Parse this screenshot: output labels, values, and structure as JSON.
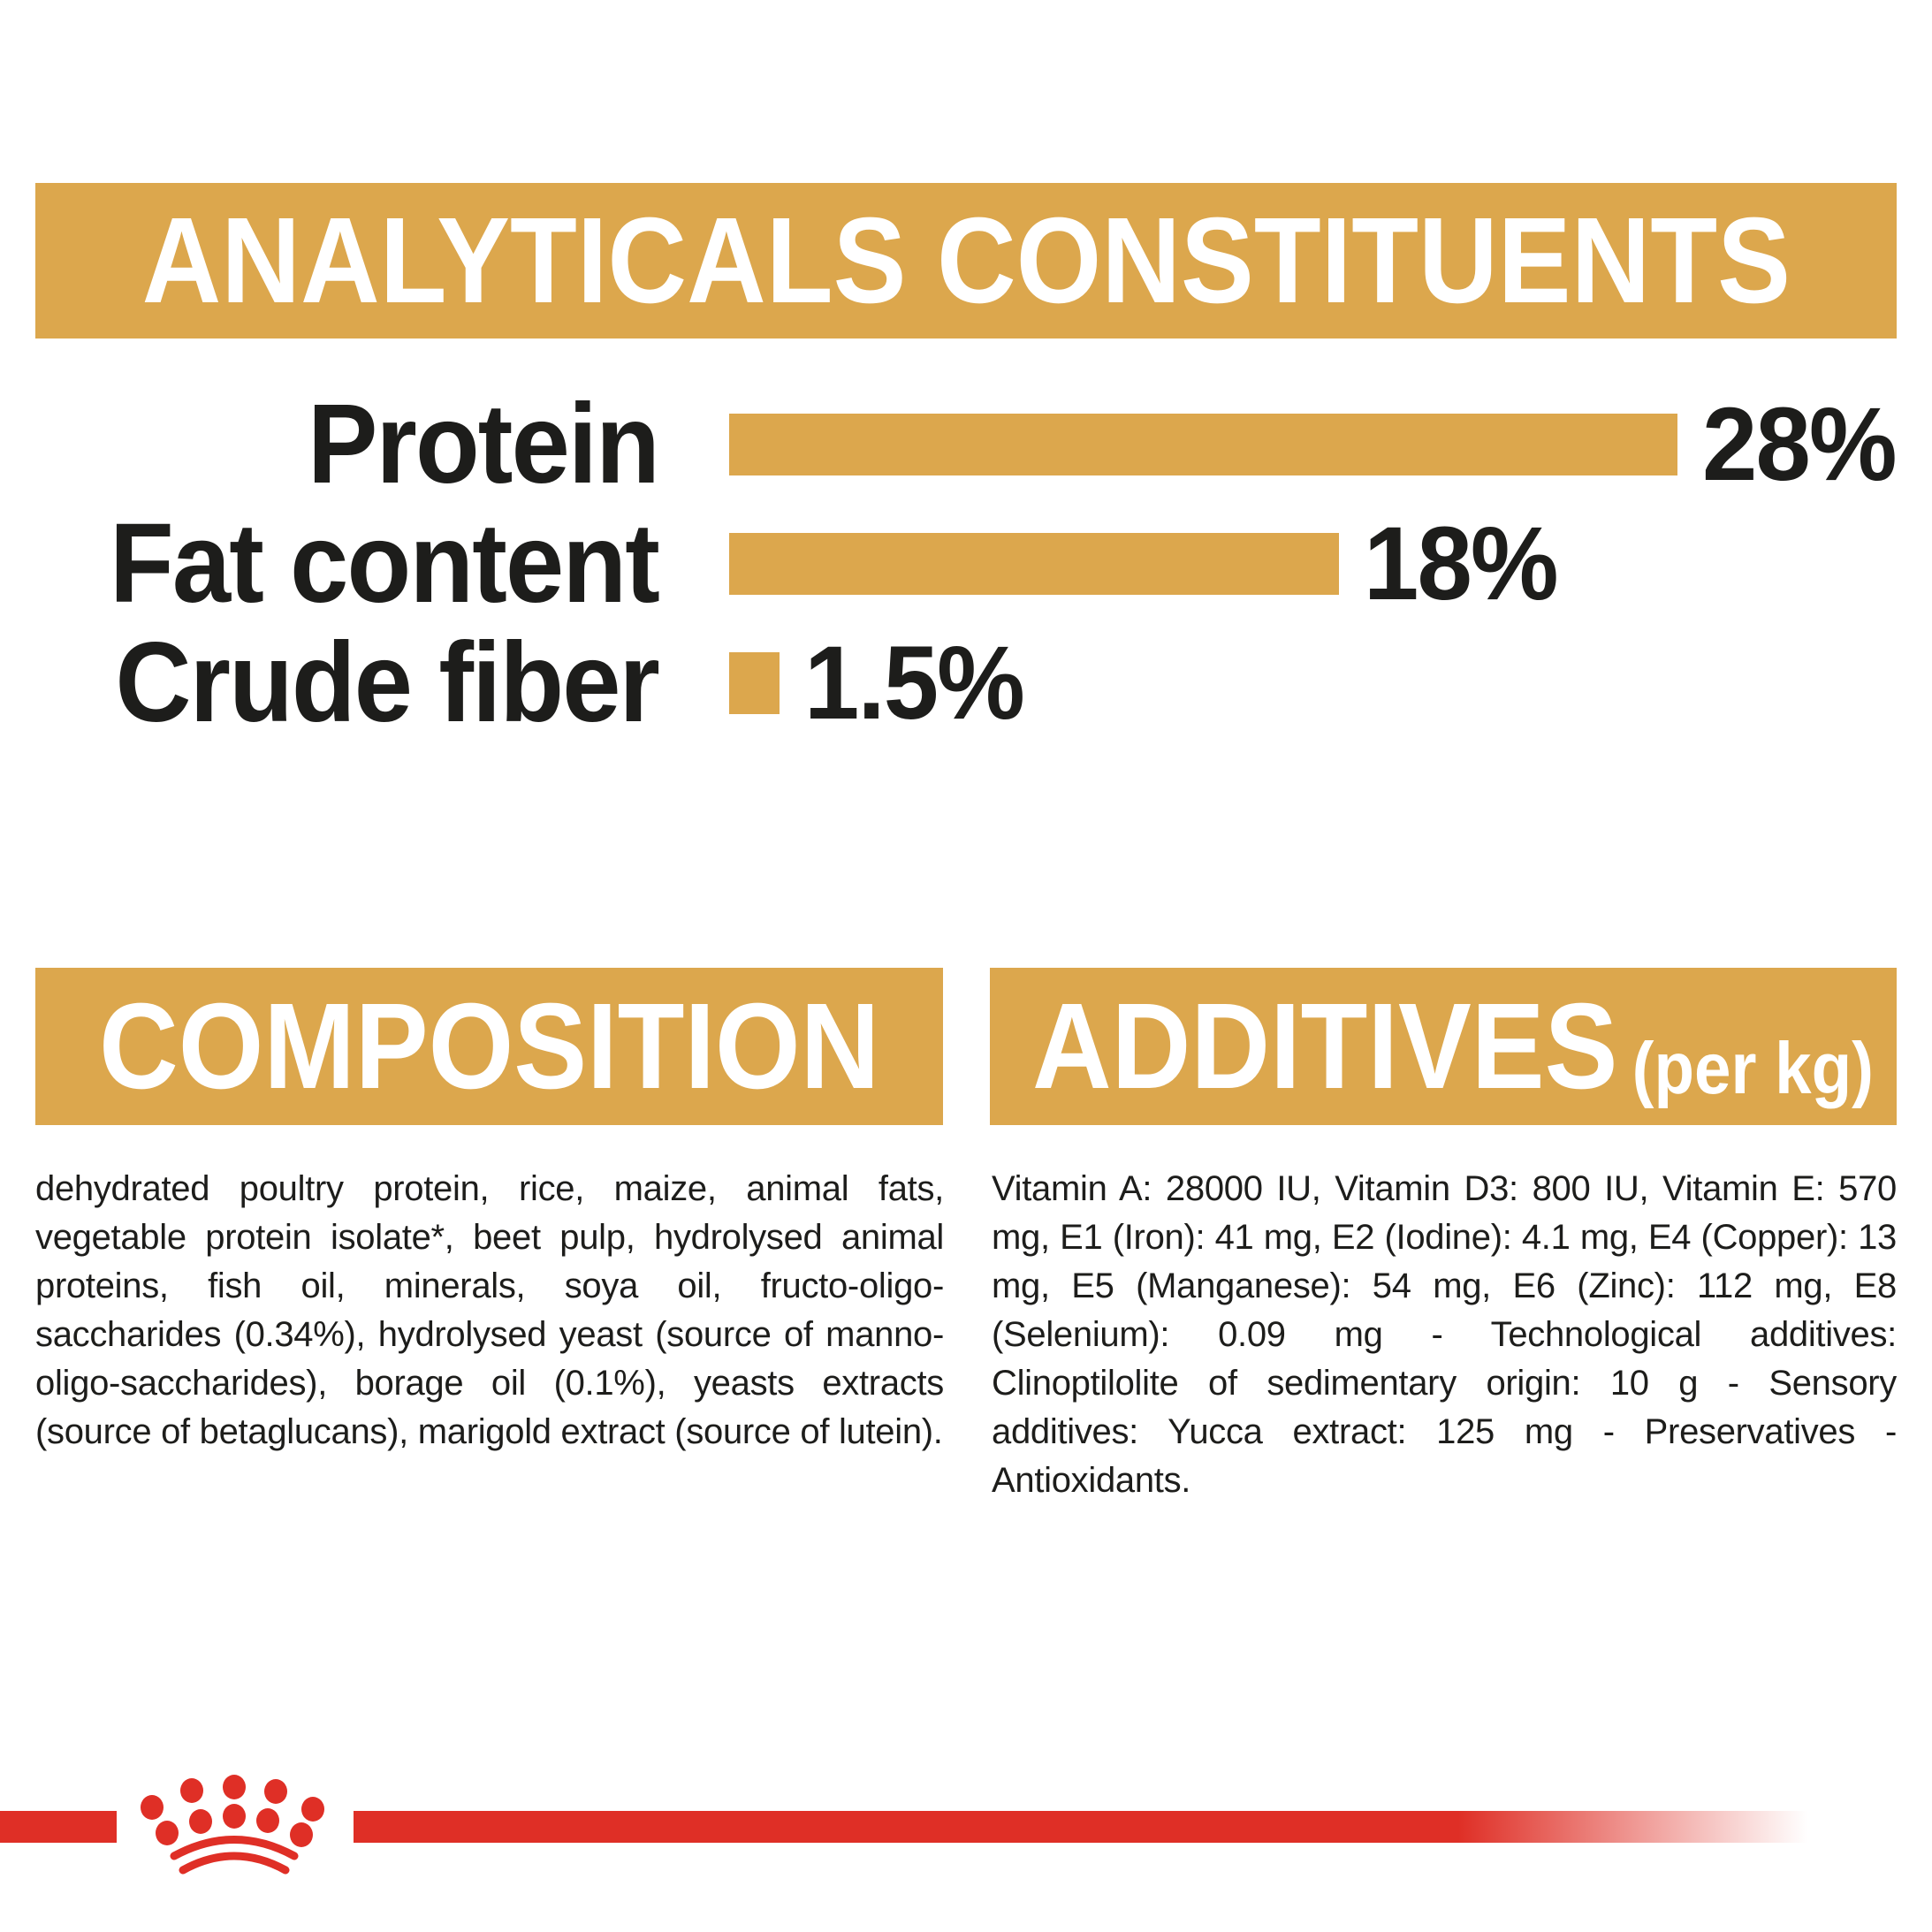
{
  "colors": {
    "gold": "#DCA74D",
    "red": "#DF2F26",
    "ink": "#1D1D1B"
  },
  "header": {
    "title": "ANALYTICALS CONSTITUENTS"
  },
  "chart_data": {
    "type": "bar",
    "orientation": "horizontal",
    "categories": [
      "Protein",
      "Fat content",
      "Crude fiber"
    ],
    "values": [
      28,
      18,
      1.5
    ],
    "value_labels": [
      "28%",
      "18%",
      "1.5%"
    ],
    "unit": "%",
    "xlim": [
      0,
      28
    ],
    "bar_color": "#DCA74D",
    "title": "ANALYTICALS CONSTITUENTS",
    "grid": false,
    "legend": false
  },
  "composition": {
    "title": "COMPOSITION",
    "body": "dehydrated poultry protein, rice, maize, animal fats, vegetable protein isolate*, beet pulp, hydrolysed animal proteins, fish oil, minerals, soya oil, fructo-oligo-saccharides (0.34%), hydrolysed yeast (source of manno-oligo-saccharides), borage oil (0.1%), yeasts extracts (source of betaglucans), marigold extract (source of lutein)."
  },
  "additives": {
    "title": "ADDITIVES",
    "title_suffix": "(per kg)",
    "body": "Vitamin A: 28000 IU, Vitamin D3: 800 IU, Vitamin E: 570 mg, E1 (Iron): 41 mg, E2 (Iodine): 4.1 mg, E4 (Copper): 13 mg, E5 (Manganese): 54 mg, E6 (Zinc): 112 mg, E8 (Selenium): 0.09 mg - Technological additives: Clinoptilolite of sedimentary origin: 10 g - Sensory additives: Yucca extract: 125 mg - Preservatives - Antioxidants."
  },
  "footer": {
    "logo": "royal-canin-crown"
  }
}
